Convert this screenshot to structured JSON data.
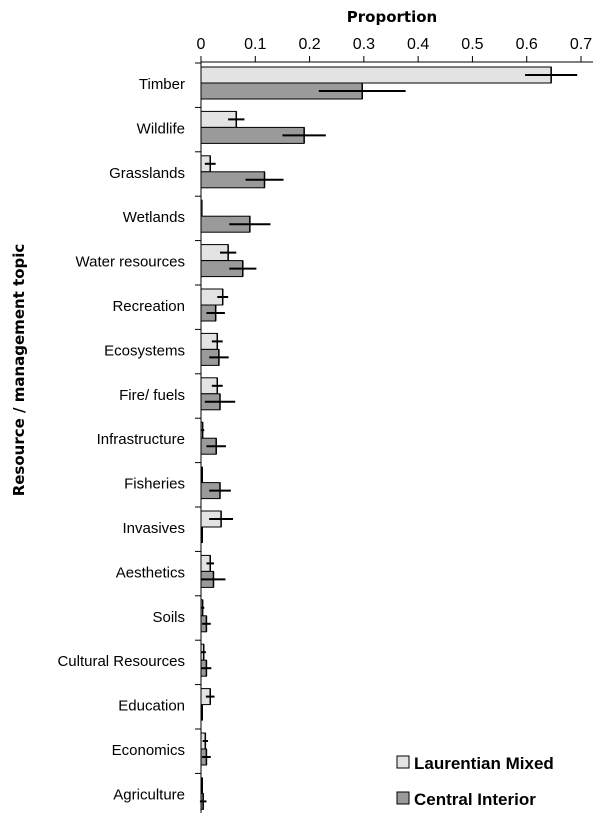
{
  "chart_data": {
    "type": "bar",
    "orientation": "horizontal",
    "xlabel": "Proportion",
    "ylabel": "Resource / management topic",
    "xlim": [
      0,
      0.7
    ],
    "xticks": [
      "0",
      "0.1",
      "0.2",
      "0.3",
      "0.4",
      "0.5",
      "0.6",
      "0.7"
    ],
    "categories": [
      "Timber",
      "Wildlife",
      "Grasslands",
      "Wetlands",
      "Water resources",
      "Recreation",
      "Ecosystems",
      "Fire/ fuels",
      "Infrastructure",
      "Fisheries",
      "Invasives",
      "Aesthetics",
      "Soils",
      "Cultural Resources",
      "Education",
      "Economics",
      "Agriculture"
    ],
    "series": [
      {
        "name": "Laurentian Mixed",
        "color": "#e3e3e3",
        "values": [
          0.645,
          0.065,
          0.017,
          0.002,
          0.05,
          0.04,
          0.03,
          0.03,
          0.003,
          0.0,
          0.037,
          0.017,
          0.003,
          0.005,
          0.017,
          0.008,
          0.0
        ],
        "error": [
          0.048,
          0.015,
          0.01,
          0.0,
          0.015,
          0.01,
          0.01,
          0.01,
          0.003,
          0.0,
          0.022,
          0.007,
          0.003,
          0.004,
          0.008,
          0.005,
          0.0
        ]
      },
      {
        "name": "Central Interior",
        "color": "#9a9a9a",
        "values": [
          0.297,
          0.19,
          0.117,
          0.09,
          0.077,
          0.027,
          0.033,
          0.035,
          0.028,
          0.035,
          0.0,
          0.023,
          0.01,
          0.01,
          0.0,
          0.01,
          0.004
        ]
      }
    ]
  },
  "legend": {
    "position": "bottom-right",
    "entries": [
      "Laurentian Mixed",
      "Central Interior"
    ]
  },
  "errors_ci": [
    0.08,
    0.04,
    0.035,
    0.038,
    0.025,
    0.017,
    0.018,
    0.028,
    0.018,
    0.02,
    0.0,
    0.022,
    0.008,
    0.009,
    0.0,
    0.008,
    0.006
  ]
}
